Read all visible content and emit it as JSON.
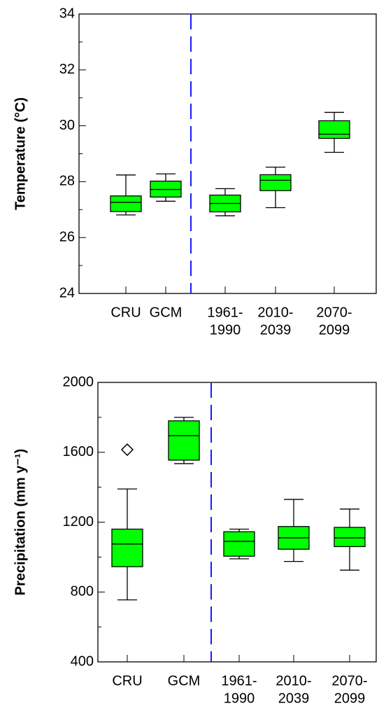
{
  "chart_data": [
    {
      "type": "box",
      "ylabel": "Temperature (°C)",
      "categories": [
        [
          "CRU"
        ],
        [
          "GCM"
        ],
        [
          "1961-",
          "1990"
        ],
        [
          "2010-",
          "2039"
        ],
        [
          "2070-",
          "2099"
        ]
      ],
      "color": "#00ff00",
      "boxes": [
        {
          "min": 26.81,
          "q1": 26.93,
          "median": 27.26,
          "q3": 27.49,
          "max": 28.24
        },
        {
          "min": 27.3,
          "q1": 27.45,
          "median": 27.72,
          "q3": 28.02,
          "max": 28.28
        },
        {
          "min": 26.78,
          "q1": 26.92,
          "median": 27.22,
          "q3": 27.52,
          "max": 27.75
        },
        {
          "min": 27.07,
          "q1": 27.68,
          "median": 28.05,
          "q3": 28.25,
          "max": 28.52
        },
        {
          "min": 29.05,
          "q1": 29.55,
          "median": 29.7,
          "q3": 30.18,
          "max": 30.48
        }
      ],
      "ylim": [
        24,
        34
      ],
      "yticks": [
        24,
        26,
        28,
        30,
        32,
        34
      ],
      "yminorticks": [
        25,
        27,
        29,
        31,
        33
      ]
    },
    {
      "type": "box",
      "ylabel": "Precipitation (mm y⁻¹)",
      "categories": [
        [
          "CRU"
        ],
        [
          "GCM"
        ],
        [
          "1961-",
          "1990"
        ],
        [
          "2010-",
          "2039"
        ],
        [
          "2070-",
          "2099"
        ]
      ],
      "color": "#00ff00",
      "boxes": [
        {
          "min": 755,
          "q1": 945,
          "median": 1075,
          "q3": 1160,
          "max": 1390,
          "outliers": [
            1615
          ]
        },
        {
          "min": 1535,
          "q1": 1555,
          "median": 1695,
          "q3": 1780,
          "max": 1800
        },
        {
          "min": 990,
          "q1": 1005,
          "median": 1090,
          "q3": 1145,
          "max": 1160
        },
        {
          "min": 975,
          "q1": 1045,
          "median": 1110,
          "q3": 1175,
          "max": 1330
        },
        {
          "min": 925,
          "q1": 1060,
          "median": 1110,
          "q3": 1170,
          "max": 1275
        }
      ],
      "ylim": [
        400,
        2000
      ],
      "yticks": [
        400,
        800,
        1200,
        1600,
        2000
      ],
      "yminorticks": [
        600,
        1000,
        1400,
        1800
      ]
    }
  ]
}
